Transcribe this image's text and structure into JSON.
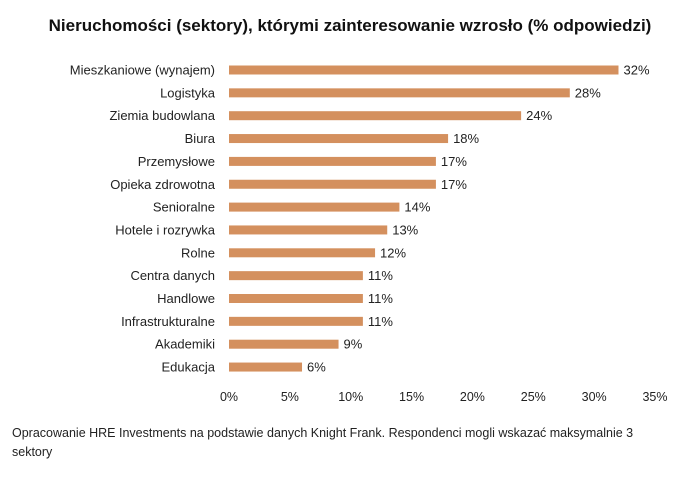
{
  "chart_data": {
    "type": "bar",
    "orientation": "horizontal",
    "title": "Nieruchomości (sektory), którymi zainteresowanie wzrosło (% odpowiedzi)",
    "categories": [
      "Mieszkaniowe (wynajem)",
      "Logistyka",
      "Ziemia budowlana",
      "Biura",
      "Przemysłowe",
      "Opieka zdrowotna",
      "Senioralne",
      "Hotele i rozrywka",
      "Rolne",
      "Centra danych",
      "Handlowe",
      "Infrastrukturalne",
      "Akademiki",
      "Edukacja"
    ],
    "values": [
      32,
      28,
      24,
      18,
      17,
      17,
      14,
      13,
      12,
      11,
      11,
      11,
      9,
      6
    ],
    "value_labels": [
      "32%",
      "28%",
      "24%",
      "18%",
      "17%",
      "17%",
      "14%",
      "13%",
      "12%",
      "11%",
      "11%",
      "11%",
      "9%",
      "6%"
    ],
    "x_ticks": [
      0,
      5,
      10,
      15,
      20,
      25,
      30,
      35
    ],
    "x_tick_labels": [
      "0%",
      "5%",
      "10%",
      "15%",
      "20%",
      "25%",
      "30%",
      "35%"
    ],
    "xlim": [
      0,
      35
    ],
    "grid": false,
    "legend": "none",
    "bar_color": "#D4905E"
  },
  "footnote": "Opracowanie HRE Investments na podstawie danych Knight Frank. Respondenci mogli wskazać maksymalnie 3 sektory"
}
